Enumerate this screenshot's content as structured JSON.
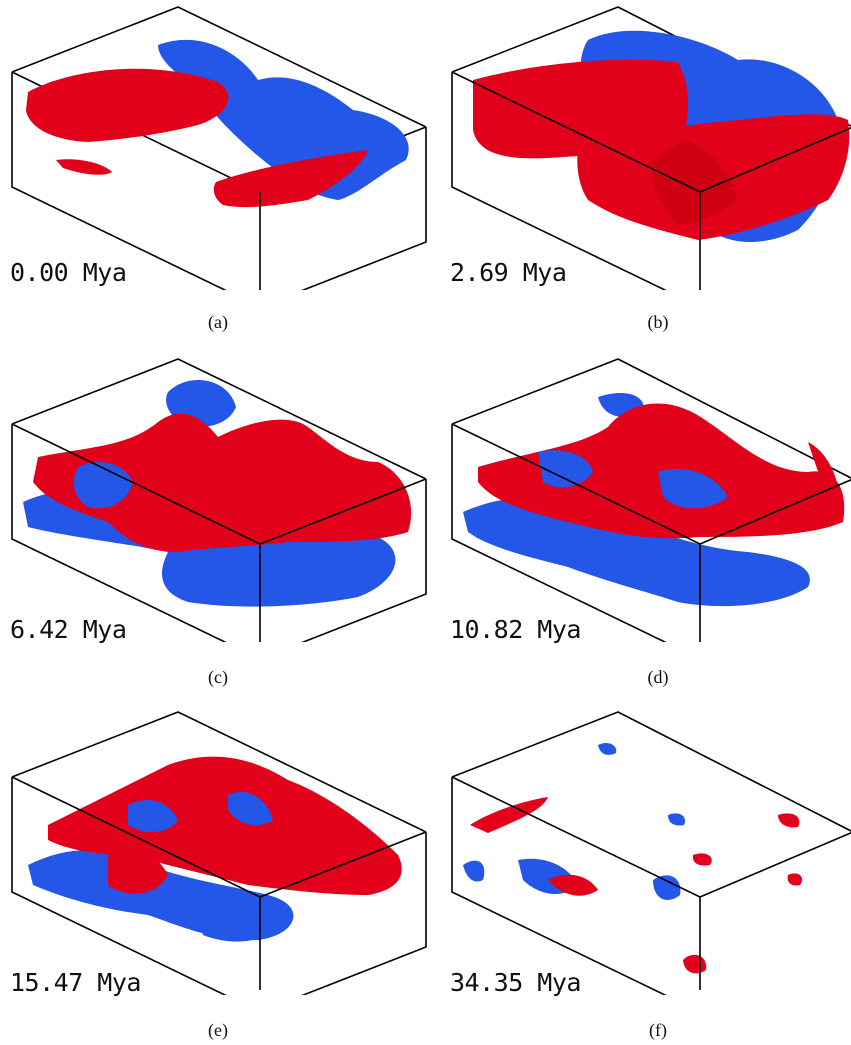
{
  "figure": {
    "colors": {
      "positive": "#e3001b",
      "negative": "#2456e8",
      "box": "#000000"
    },
    "panels": [
      {
        "time": "0.00 Mya",
        "caption": "(a)"
      },
      {
        "time": "2.69 Mya",
        "caption": "(b)"
      },
      {
        "time": "6.42 Mya",
        "caption": "(c)"
      },
      {
        "time": "10.82 Mya",
        "caption": "(d)"
      },
      {
        "time": "15.47 Mya",
        "caption": "(e)"
      },
      {
        "time": "34.35 Mya",
        "caption": "(f)"
      }
    ]
  }
}
